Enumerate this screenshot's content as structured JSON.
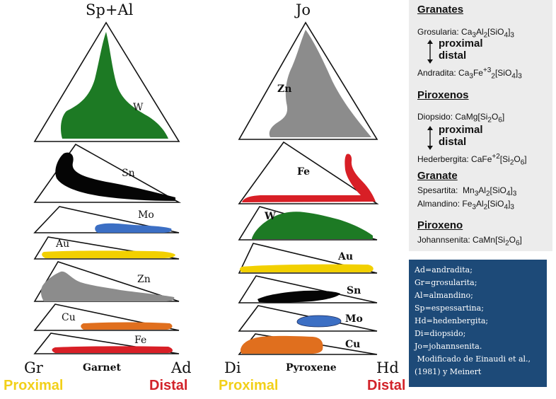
{
  "left_diagram": {
    "apex": "Sp+Al",
    "left_corner": "Gr",
    "right_corner": "Ad",
    "axis_name": "Garnet",
    "proximal": "Proximal",
    "distal": "Distal",
    "elements": [
      "W",
      "Sn",
      "Mo",
      "Au",
      "Zn",
      "Cu",
      "Fe"
    ]
  },
  "right_diagram": {
    "apex": "Jo",
    "left_corner": "Di",
    "right_corner": "Hd",
    "axis_name": "Pyroxene",
    "proximal": "Proximal",
    "distal": "Distal",
    "elements": [
      "Zn",
      "Fe",
      "W",
      "Au",
      "Sn",
      "Mo",
      "Cu"
    ]
  },
  "colors": {
    "green": "#1d7a24",
    "black": "#050505",
    "blue": "#3c6fc4",
    "yellow": "#f2d000",
    "gray": "#8c8c8c",
    "orange": "#e06f1e",
    "red": "#d81f26",
    "proximal": "#f2d01a",
    "distal": "#d2232a"
  },
  "minerals": {
    "granates_title": "Granates",
    "grosularia": "Grosularia: Ca3Al2[SiO4]3",
    "proximal": "proximal",
    "distal": "distal",
    "andradita": "Andradita: Ca3Fe+32[SiO4]3",
    "piroxenos_title": "Piroxenos",
    "diopsido": "Diopsido: CaMg[Si2O6]",
    "hederbergita": "Hederbergita: CaFe+2[Si2O6]",
    "granate_title": "Granate",
    "spesartita": "Spesartita:  Mn3Al2[SiO4]3",
    "almandino": "Almandino: Fe3Al2[SiO4]3",
    "piroxeno_title": "Piroxeno",
    "johannsenita": "Johannsenita: CaMn[Si2O6]"
  },
  "legend": [
    "Ad=andradita;",
    "Gr=grosularita;",
    "Al=almandino;",
    "Sp=espessartina;",
    "Hd=hedenbergita;",
    "Di=diopsido;",
    "Jo=johannsenita.",
    " Modificado de Einaudi et al.,",
    "(1981) y Meinert"
  ]
}
